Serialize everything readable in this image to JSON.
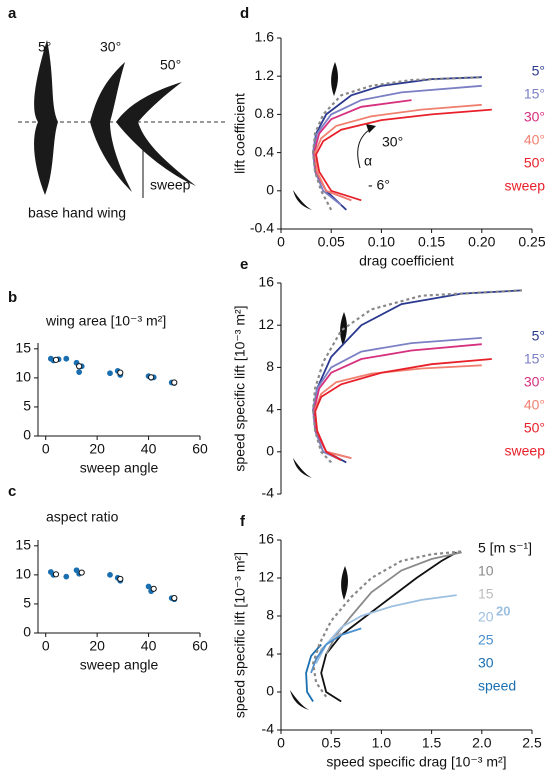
{
  "diagram": {
    "letter": "a",
    "angles": [
      "5°",
      "30°",
      "50°"
    ],
    "sweep_label": "sweep",
    "base_label": "base hand wing"
  },
  "chart_data": [
    {
      "type": "scatter",
      "letter": "b",
      "title": "wing area [10⁻³ m²]",
      "xlabel": "sweep angle",
      "xlim": [
        -3,
        60
      ],
      "ylim": [
        0,
        16
      ],
      "xticks": [
        0,
        20,
        40,
        60
      ],
      "yticks": [
        0,
        5,
        10,
        15
      ],
      "series": [
        {
          "color": "#1a6fb0",
          "marker": "filled",
          "x": [
            2,
            3,
            5,
            8,
            12,
            13,
            14,
            25,
            28,
            29,
            40,
            41,
            42,
            49,
            50
          ],
          "values": [
            13.3,
            13.0,
            13.2,
            13.3,
            12.6,
            11.0,
            12.0,
            10.8,
            11.2,
            10.5,
            10.3,
            10.0,
            10.1,
            9.2,
            9.1
          ]
        },
        {
          "color": "#111111",
          "marker": "open",
          "x": [
            4,
            13,
            29,
            41,
            50
          ],
          "values": [
            13.1,
            12.0,
            10.9,
            10.1,
            9.2
          ]
        }
      ]
    },
    {
      "type": "scatter",
      "letter": "c",
      "title": "aspect ratio",
      "xlabel": "sweep angle",
      "xlim": [
        -3,
        60
      ],
      "ylim": [
        0,
        16
      ],
      "xticks": [
        0,
        20,
        40,
        60
      ],
      "yticks": [
        0,
        5,
        10,
        15
      ],
      "series": [
        {
          "color": "#1a6fb0",
          "marker": "filled",
          "x": [
            2,
            3,
            8,
            12,
            13,
            25,
            28,
            29,
            40,
            41,
            49,
            50
          ],
          "values": [
            10.5,
            10.0,
            9.7,
            10.8,
            10.2,
            10.0,
            9.5,
            9.0,
            8.0,
            7.2,
            6.0,
            5.8
          ]
        },
        {
          "color": "#111111",
          "marker": "open",
          "x": [
            4,
            14,
            29,
            42,
            50
          ],
          "values": [
            10.1,
            10.4,
            9.3,
            7.6,
            6.0
          ]
        }
      ]
    },
    {
      "type": "line",
      "letter": "d",
      "xlabel": "drag coefficient",
      "ylabel": "lift coefficient",
      "xlim": [
        0,
        0.25
      ],
      "ylim": [
        -0.4,
        1.6
      ],
      "xticks": [
        0,
        0.05,
        {
          "value": 0.1,
          "label": "0.10"
        },
        0.15,
        {
          "value": 0.2,
          "label": "0.20"
        },
        0.25
      ],
      "yticks": [
        -0.4,
        0,
        0.4,
        0.8,
        1.2,
        1.6
      ],
      "legend_title": "sweep",
      "legend_title_color": "#e8202a",
      "annotations": [
        "30°",
        "α",
        "- 6°"
      ],
      "series": [
        {
          "name": "5°",
          "color": "#2b3a8f",
          "x": [
            0.065,
            0.045,
            0.035,
            0.032,
            0.035,
            0.045,
            0.07,
            0.1,
            0.15,
            0.2
          ],
          "values": [
            -0.2,
            0,
            0.2,
            0.4,
            0.6,
            0.8,
            1.0,
            1.1,
            1.17,
            1.19
          ]
        },
        {
          "name": "15°",
          "color": "#7b7fc4",
          "x": [
            0.06,
            0.042,
            0.034,
            0.032,
            0.036,
            0.05,
            0.08,
            0.12,
            0.2
          ],
          "values": [
            -0.15,
            0,
            0.2,
            0.4,
            0.6,
            0.8,
            0.95,
            1.03,
            1.1
          ]
        },
        {
          "name": "30°",
          "color": "#d6307e",
          "x": [
            0.07,
            0.045,
            0.035,
            0.033,
            0.038,
            0.05,
            0.08,
            0.13
          ],
          "values": [
            -0.1,
            0,
            0.2,
            0.4,
            0.6,
            0.75,
            0.88,
            0.95
          ]
        },
        {
          "name": "40°",
          "color": "#f08070",
          "x": [
            0.07,
            0.045,
            0.036,
            0.034,
            0.04,
            0.055,
            0.09,
            0.14,
            0.2
          ],
          "values": [
            -0.1,
            0,
            0.2,
            0.4,
            0.55,
            0.68,
            0.78,
            0.85,
            0.9
          ]
        },
        {
          "name": "50°",
          "color": "#e8202a",
          "x": [
            0.08,
            0.05,
            0.038,
            0.035,
            0.042,
            0.06,
            0.1,
            0.15,
            0.21
          ],
          "values": [
            -0.1,
            0,
            0.2,
            0.38,
            0.52,
            0.64,
            0.74,
            0.8,
            0.85
          ]
        },
        {
          "color": "#888888",
          "dashed": true,
          "x": [
            0.05,
            0.04,
            0.034,
            0.032,
            0.034,
            0.042,
            0.06,
            0.09,
            0.13,
            0.2
          ],
          "values": [
            -0.2,
            0,
            0.2,
            0.4,
            0.6,
            0.8,
            1.0,
            1.1,
            1.16,
            1.19
          ]
        }
      ]
    },
    {
      "type": "line",
      "letter": "e",
      "ylabel": "speed specific lift [10⁻³ m²]",
      "xlim": [
        0,
        0.25
      ],
      "ylim": [
        -4,
        16
      ],
      "yticks": [
        -4,
        0,
        4,
        8,
        12,
        16
      ],
      "legend_title": "sweep",
      "legend_title_color": "#e8202a",
      "series": [
        {
          "name": "5°",
          "color": "#2b3a8f",
          "x": [
            0.065,
            0.045,
            0.035,
            0.032,
            0.036,
            0.05,
            0.08,
            0.12,
            0.18,
            0.24
          ],
          "values": [
            -1,
            0,
            2,
            4,
            6,
            9,
            12,
            14,
            15,
            15.3
          ]
        },
        {
          "name": "15°",
          "color": "#7b7fc4",
          "x": [
            0.06,
            0.042,
            0.034,
            0.032,
            0.036,
            0.05,
            0.08,
            0.13,
            0.2
          ],
          "values": [
            -0.8,
            0,
            2,
            4,
            6,
            8,
            9.5,
            10.3,
            10.8
          ]
        },
        {
          "name": "30°",
          "color": "#d6307e",
          "x": [
            0.07,
            0.045,
            0.035,
            0.033,
            0.038,
            0.05,
            0.08,
            0.13,
            0.2
          ],
          "values": [
            -0.6,
            0,
            2,
            4,
            6,
            7.5,
            8.8,
            9.6,
            10.2
          ]
        },
        {
          "name": "40°",
          "color": "#f08070",
          "x": [
            0.07,
            0.045,
            0.036,
            0.034,
            0.04,
            0.055,
            0.09,
            0.14,
            0.2
          ],
          "values": [
            -0.6,
            0,
            2,
            4,
            5.5,
            6.6,
            7.4,
            7.9,
            8.2
          ]
        },
        {
          "name": "50°",
          "color": "#e8202a",
          "x": [
            0.06,
            0.045,
            0.036,
            0.034,
            0.04,
            0.06,
            0.1,
            0.15,
            0.21
          ],
          "values": [
            -0.8,
            0,
            2,
            3.8,
            5.2,
            6.4,
            7.5,
            8.3,
            8.8
          ]
        },
        {
          "color": "#888888",
          "dashed": true,
          "x": [
            0.05,
            0.04,
            0.034,
            0.032,
            0.034,
            0.042,
            0.06,
            0.09,
            0.14,
            0.24
          ],
          "values": [
            -1,
            0,
            2,
            4,
            6,
            8.5,
            11.5,
            13.5,
            14.8,
            15.3
          ]
        }
      ]
    },
    {
      "type": "line",
      "letter": "f",
      "xlabel": "speed specific drag [10⁻³ m²]",
      "ylabel": "speed specific lift [10⁻³ m²]",
      "xlim": [
        0,
        2.5
      ],
      "ylim": [
        -4,
        16
      ],
      "xticks": [
        0,
        0.5,
        {
          "value": 1,
          "label": "1.0"
        },
        1.5,
        {
          "value": 2,
          "label": "2.0"
        },
        2.5
      ],
      "yticks": [
        -4,
        0,
        4,
        8,
        12,
        16
      ],
      "legend_title": "speed",
      "legend_title_color": "#1a6fb0",
      "annotations": [
        "20"
      ],
      "series": [
        {
          "name": "5 [m s⁻¹]",
          "color": "#111111",
          "x": [
            0.6,
            0.45,
            0.4,
            0.45,
            0.6,
            0.85,
            1.1,
            1.35,
            1.6,
            1.75
          ],
          "values": [
            -1,
            0,
            2,
            4,
            6,
            8,
            10,
            12,
            13.8,
            14.7
          ]
        },
        {
          "name": "10",
          "color": "#8a8a8a",
          "x": [
            0.45,
            0.55,
            0.7,
            0.9,
            1.2,
            1.5,
            1.8
          ],
          "values": [
            4,
            6,
            8,
            10.5,
            12.8,
            14,
            14.7
          ]
        },
        {
          "name": "15",
          "color": "#bdbdbd",
          "x": [
            0.35,
            0.4,
            0.5,
            0.6
          ],
          "values": [
            3,
            4.5,
            5.5,
            6.2
          ]
        },
        {
          "name": "20",
          "color": "#9dbfe0",
          "x": [
            0.35,
            0.45,
            0.6,
            0.8,
            1.1,
            1.4,
            1.75
          ],
          "values": [
            3,
            5,
            6.8,
            8,
            9,
            9.7,
            10.2
          ]
        },
        {
          "name": "25",
          "color": "#4a90d0",
          "x": [
            0.3,
            0.35,
            0.45,
            0.6,
            0.8
          ],
          "values": [
            2,
            3.5,
            5,
            6,
            6.7
          ]
        },
        {
          "name": "30",
          "color": "#1a6fb0",
          "x": [
            0.32,
            0.26,
            0.25,
            0.3,
            0.4
          ],
          "values": [
            -1,
            0,
            2,
            3.8,
            5
          ]
        },
        {
          "color": "#888888",
          "dashed": true,
          "x": [
            0.45,
            0.35,
            0.32,
            0.38,
            0.5,
            0.7,
            0.9,
            1.2,
            1.5,
            1.8
          ],
          "values": [
            -0.5,
            1,
            3,
            5,
            7.5,
            10,
            12,
            13.8,
            14.5,
            14.8
          ]
        }
      ]
    }
  ]
}
